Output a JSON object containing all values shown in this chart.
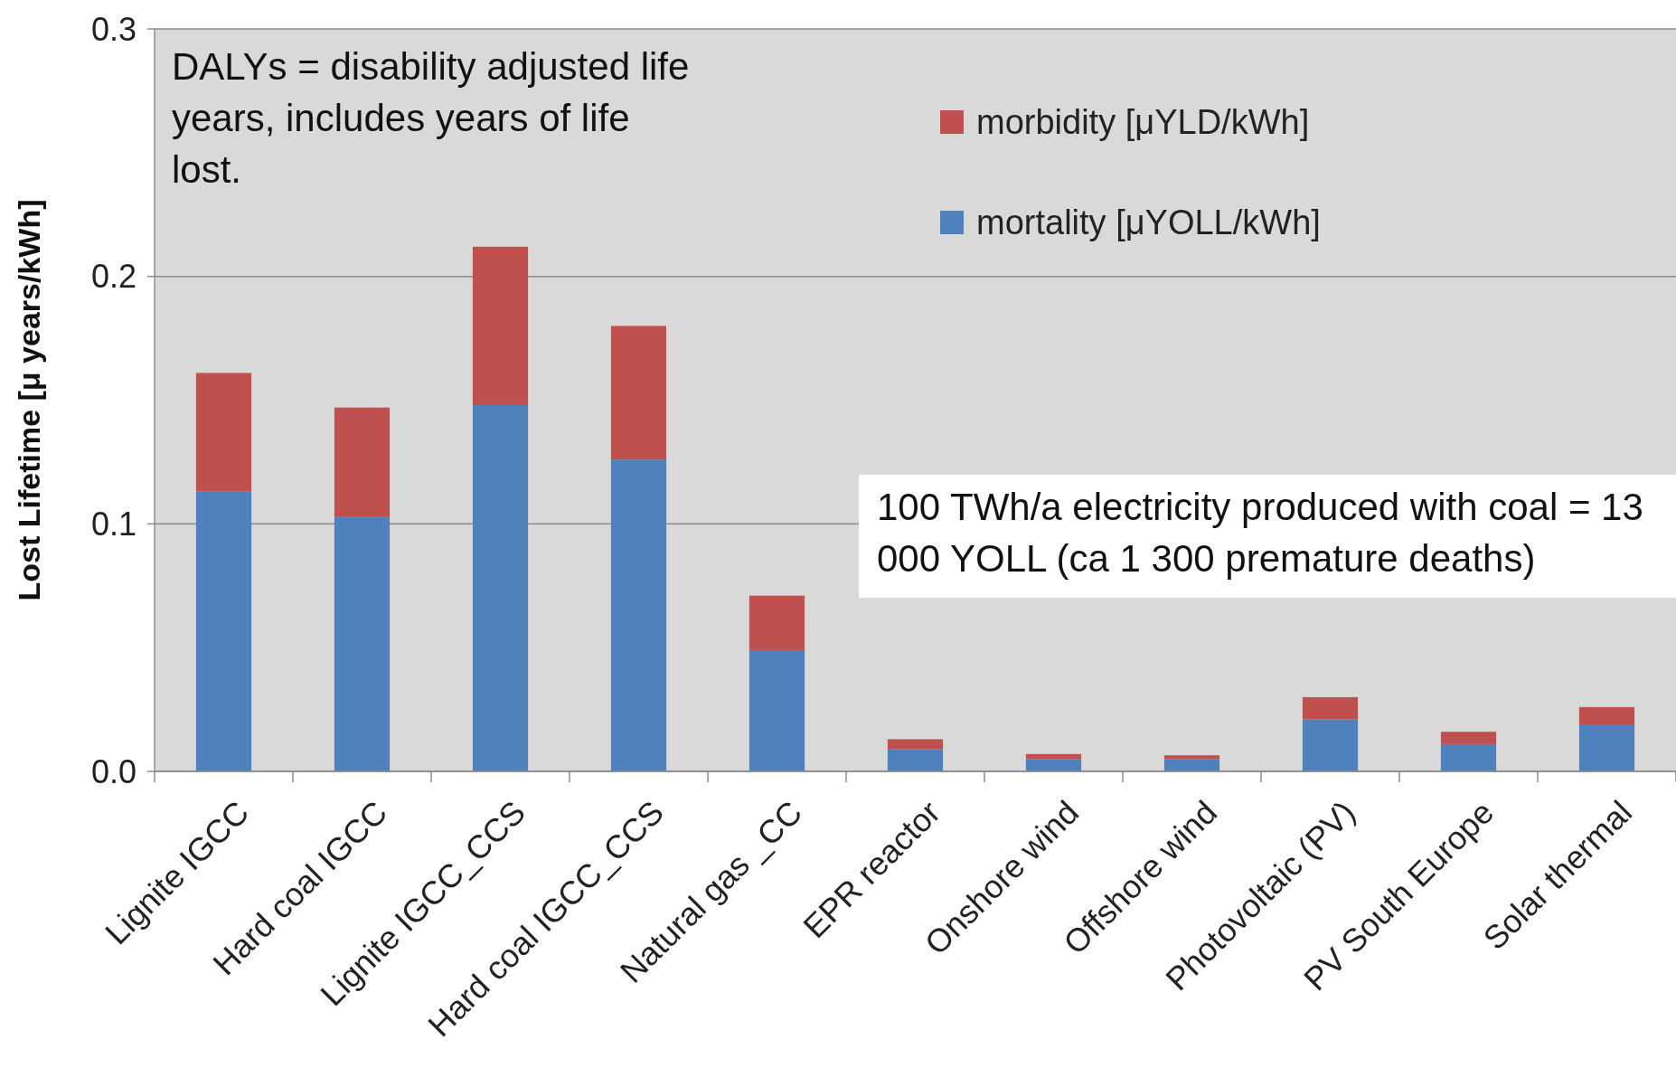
{
  "chart_data": {
    "type": "bar",
    "stacked": true,
    "ylabel": "Lost Lifetime [μ years/kWh]",
    "categories": [
      "Lignite IGCC",
      "Hard coal IGCC",
      "Lignite IGCC_CCS",
      "Hard coal IGCC_CCS",
      "Natural gas _CC",
      "EPR reactor",
      "Onshore wind",
      "Offshore wind",
      "Photovoltaic (PV)",
      "PV South Europe",
      "Solar thermal"
    ],
    "series": [
      {
        "name": "mortality [μYOLL/kWh]",
        "color": "#4f81bd",
        "values": [
          0.113,
          0.103,
          0.148,
          0.126,
          0.049,
          0.009,
          0.005,
          0.005,
          0.021,
          0.011,
          0.019
        ]
      },
      {
        "name": "morbidity [μYLD/kWh]",
        "color": "#c0504d",
        "values": [
          0.048,
          0.044,
          0.064,
          0.054,
          0.022,
          0.004,
          0.002,
          0.0015,
          0.009,
          0.005,
          0.007
        ]
      }
    ],
    "ylim": [
      0,
      0.3
    ],
    "yticks": [
      {
        "value": 0,
        "label": "0.0"
      },
      0.1,
      0.2,
      0.3
    ],
    "grid": "y",
    "legend": "top right",
    "annotations": [
      "DALYs = disability adjusted life years, includes years of life lost.",
      "100 TWh/a electricity produced with coal = 13 000 YOLL (ca 1 300 premature deaths)"
    ]
  }
}
